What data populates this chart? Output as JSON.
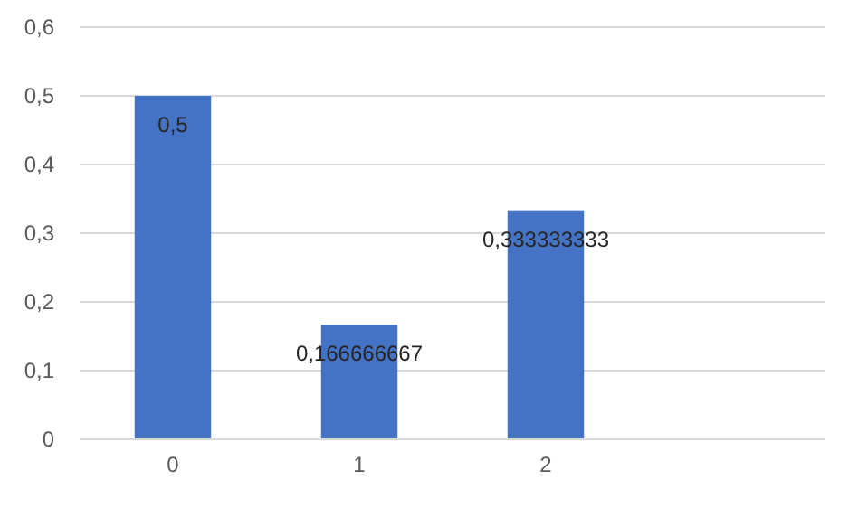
{
  "chart_data": {
    "type": "bar",
    "categories": [
      "0",
      "1",
      "2",
      null
    ],
    "values": [
      0.5,
      0.166666667,
      0.333333333,
      null
    ],
    "value_labels": [
      "0,5",
      "0,166666667",
      "0,333333333",
      null
    ],
    "color": "#4472c4",
    "ylim": [
      0,
      0.6
    ],
    "yticks": [
      {
        "value": 0,
        "label": "0"
      },
      {
        "value": 0.1,
        "label": "0,1"
      },
      {
        "value": 0.2,
        "label": "0,2"
      },
      {
        "value": 0.3,
        "label": "0,3"
      },
      {
        "value": 0.4,
        "label": "0,4"
      },
      {
        "value": 0.5,
        "label": "0,5"
      },
      {
        "value": 0.6,
        "label": "0,6"
      }
    ],
    "grid": "y"
  }
}
